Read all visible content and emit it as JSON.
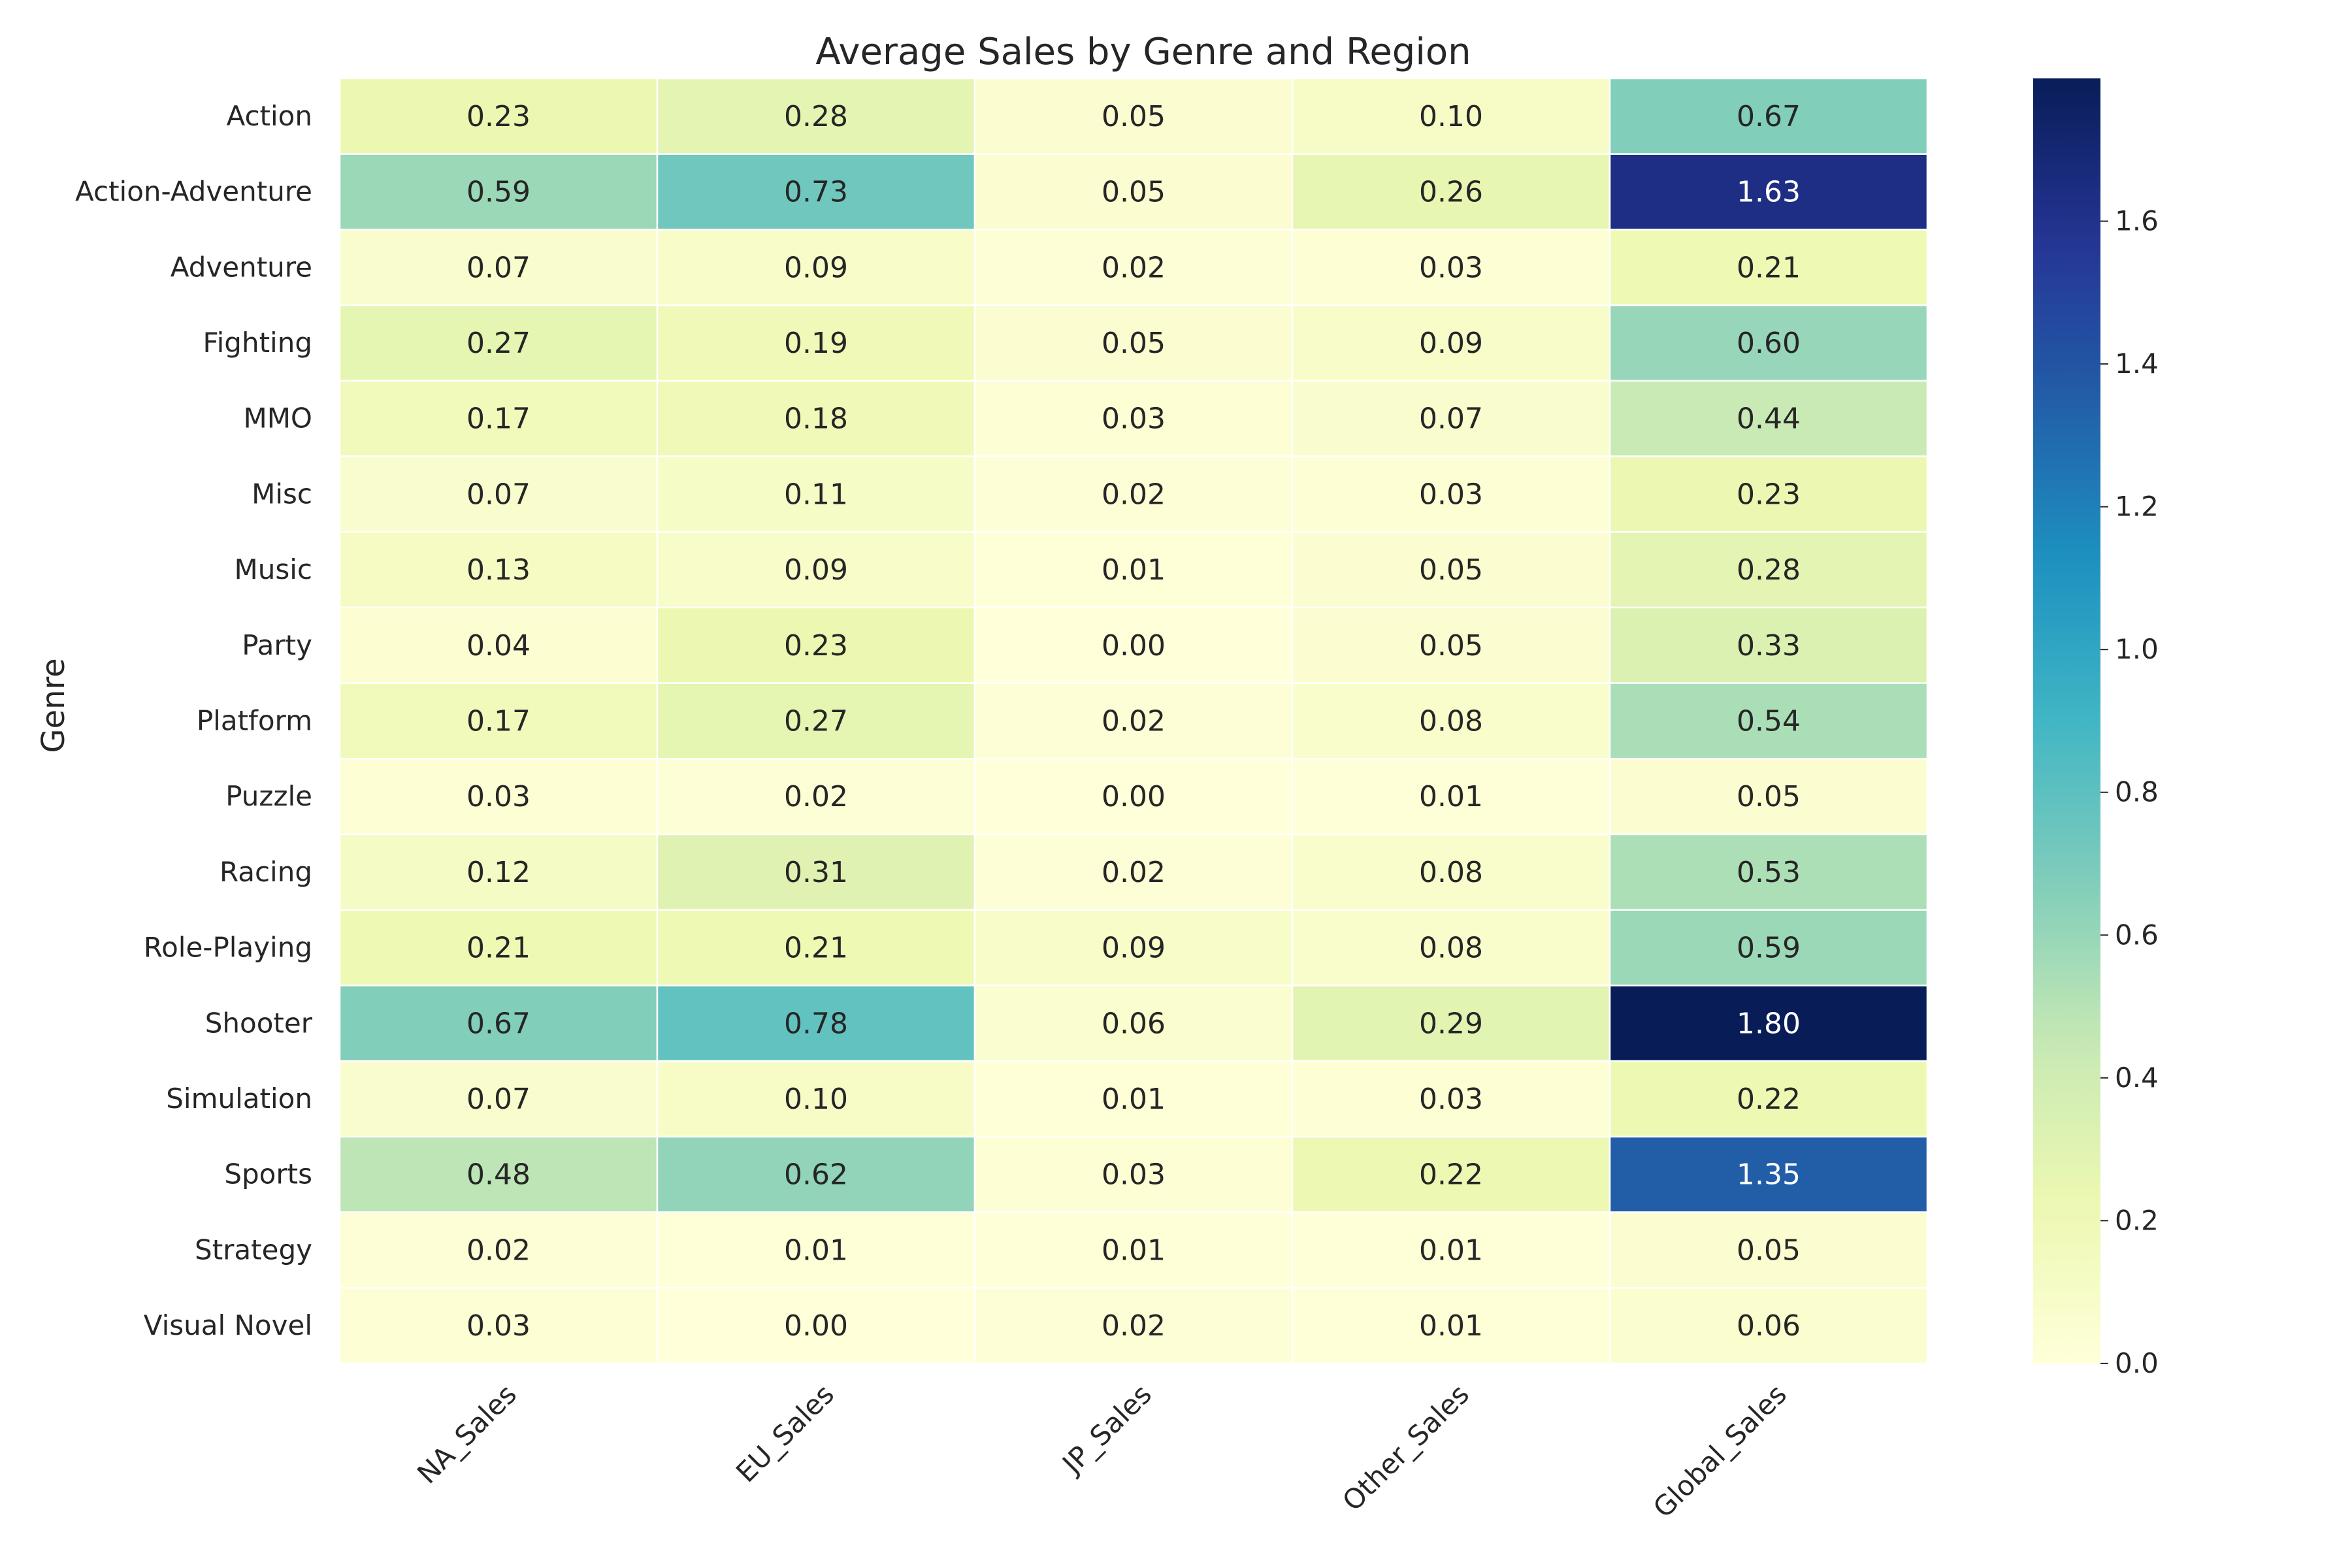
{
  "chart_data": {
    "type": "heatmap",
    "title": "Average Sales by Genre and Region",
    "ylabel": "Genre",
    "xlabel": "",
    "columns": [
      "NA_Sales",
      "EU_Sales",
      "JP_Sales",
      "Other_Sales",
      "Global_Sales"
    ],
    "rows": [
      "Action",
      "Action-Adventure",
      "Adventure",
      "Fighting",
      "MMO",
      "Misc",
      "Music",
      "Party",
      "Platform",
      "Puzzle",
      "Racing",
      "Role-Playing",
      "Shooter",
      "Simulation",
      "Sports",
      "Strategy",
      "Visual Novel"
    ],
    "values": [
      [
        0.23,
        0.28,
        0.05,
        0.1,
        0.67
      ],
      [
        0.59,
        0.73,
        0.05,
        0.26,
        1.63
      ],
      [
        0.07,
        0.09,
        0.02,
        0.03,
        0.21
      ],
      [
        0.27,
        0.19,
        0.05,
        0.09,
        0.6
      ],
      [
        0.17,
        0.18,
        0.03,
        0.07,
        0.44
      ],
      [
        0.07,
        0.11,
        0.02,
        0.03,
        0.23
      ],
      [
        0.13,
        0.09,
        0.01,
        0.05,
        0.28
      ],
      [
        0.04,
        0.23,
        0.0,
        0.05,
        0.33
      ],
      [
        0.17,
        0.27,
        0.02,
        0.08,
        0.54
      ],
      [
        0.03,
        0.02,
        0.0,
        0.01,
        0.05
      ],
      [
        0.12,
        0.31,
        0.02,
        0.08,
        0.53
      ],
      [
        0.21,
        0.21,
        0.09,
        0.08,
        0.59
      ],
      [
        0.67,
        0.78,
        0.06,
        0.29,
        1.8
      ],
      [
        0.07,
        0.1,
        0.01,
        0.03,
        0.22
      ],
      [
        0.48,
        0.62,
        0.03,
        0.22,
        1.35
      ],
      [
        0.02,
        0.01,
        0.01,
        0.01,
        0.05
      ],
      [
        0.03,
        0.0,
        0.02,
        0.01,
        0.06
      ]
    ],
    "value_range": [
      0.0,
      1.8
    ],
    "colormap": "YlGnBu",
    "colorbar": {
      "ticks": [
        0.0,
        0.2,
        0.4,
        0.6,
        0.8,
        1.0,
        1.2,
        1.4,
        1.6
      ],
      "tick_labels": [
        "0.0",
        "0.2",
        "0.4",
        "0.6",
        "0.8",
        "1.0",
        "1.2",
        "1.4",
        "1.6"
      ]
    },
    "grid_line_color": "#ffffff",
    "colorbar_placement": "right"
  }
}
